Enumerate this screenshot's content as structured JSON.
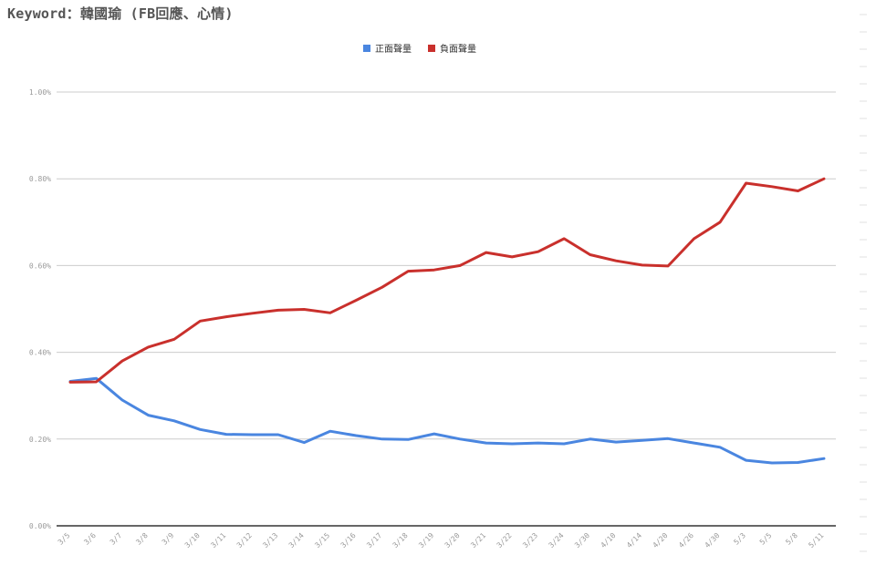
{
  "page": {
    "title": "Keyword：韓國瑜 (FB回應、心情)"
  },
  "chart_data": {
    "type": "line",
    "title": "",
    "xlabel": "",
    "ylabel": "",
    "categories": [
      "3/5",
      "3/6",
      "3/7",
      "3/8",
      "3/9",
      "3/10",
      "3/11",
      "3/12",
      "3/13",
      "3/14",
      "3/15",
      "3/16",
      "3/17",
      "3/18",
      "3/19",
      "3/20",
      "3/21",
      "3/22",
      "3/23",
      "3/24",
      "3/30",
      "4/10",
      "4/14",
      "4/20",
      "4/26",
      "4/30",
      "5/3",
      "5/5",
      "5/8",
      "5/11"
    ],
    "ylim": [
      0,
      1.0
    ],
    "yticks": [
      0,
      0.2,
      0.4,
      0.6,
      0.8,
      1.0
    ],
    "ytick_labels": [
      "0.00%",
      "0.20%",
      "0.40%",
      "0.60%",
      "0.80%",
      "1.00%"
    ],
    "grid": true,
    "legend": "top-center",
    "series": [
      {
        "name": "正面聲量",
        "color": "#4a86e0",
        "values": [
          0.333,
          0.34,
          0.29,
          0.255,
          0.242,
          0.222,
          0.211,
          0.21,
          0.21,
          0.192,
          0.218,
          0.208,
          0.2,
          0.199,
          0.212,
          0.2,
          0.191,
          0.189,
          0.191,
          0.189,
          0.2,
          0.193,
          0.197,
          0.201,
          0.191,
          0.181,
          0.151,
          0.145,
          0.146,
          0.155
        ]
      },
      {
        "name": "負面聲量",
        "color": "#c9302c",
        "values": [
          0.331,
          0.332,
          0.38,
          0.412,
          0.43,
          0.472,
          0.482,
          0.49,
          0.497,
          0.499,
          0.491,
          0.52,
          0.55,
          0.587,
          0.59,
          0.6,
          0.63,
          0.62,
          0.632,
          0.662,
          0.625,
          0.611,
          0.601,
          0.599,
          0.662,
          0.7,
          0.79,
          0.782,
          0.772,
          0.8
        ]
      }
    ]
  }
}
